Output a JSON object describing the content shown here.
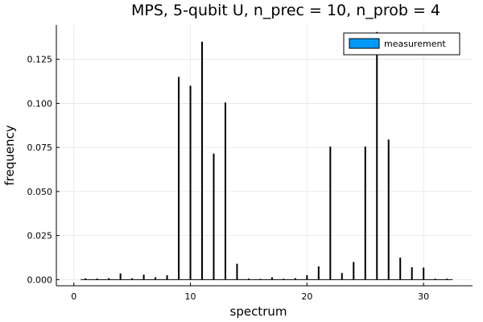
{
  "chart_data": {
    "type": "bar",
    "title": "MPS, 5-qubit U, n_prec = 10, n_prob = 4",
    "xlabel": "spectrum",
    "ylabel": "frequency",
    "xlim": [
      -1.5,
      34.2
    ],
    "ylim": [
      -0.0035,
      0.1445
    ],
    "xticks": [
      0,
      10,
      20,
      30
    ],
    "xtick_labels": [
      "0",
      "10",
      "20",
      "30"
    ],
    "yticks": [
      0.0,
      0.025,
      0.05,
      0.075,
      0.1,
      0.125
    ],
    "ytick_labels": [
      "0.000",
      "0.025",
      "0.050",
      "0.075",
      "0.100",
      "0.125"
    ],
    "grid": true,
    "legend_position": "top-right",
    "series": [
      {
        "name": "measurement",
        "color": "#009af9",
        "x": [
          0.6,
          1.0,
          2.0,
          3.0,
          4.0,
          5.0,
          6.0,
          7.0,
          8.0,
          9.0,
          10.0,
          11.0,
          12.0,
          13.0,
          14.0,
          15.0,
          16.0,
          17.0,
          18.0,
          19.0,
          20.0,
          21.0,
          22.0,
          23.0,
          24.0,
          25.0,
          26.0,
          27.0,
          28.0,
          29.0,
          30.0,
          31.0,
          32.0,
          32.5
        ],
        "values": [
          0.0,
          0.0007,
          0.0006,
          0.0008,
          0.0035,
          0.0007,
          0.0028,
          0.0013,
          0.0025,
          0.115,
          0.11,
          0.135,
          0.0715,
          0.1005,
          0.009,
          0.0006,
          0.0004,
          0.0013,
          0.0005,
          0.0008,
          0.0025,
          0.0075,
          0.0755,
          0.0037,
          0.01,
          0.0755,
          0.1405,
          0.0795,
          0.0125,
          0.007,
          0.0068,
          0.0005,
          0.0005,
          0.0
        ]
      }
    ]
  }
}
